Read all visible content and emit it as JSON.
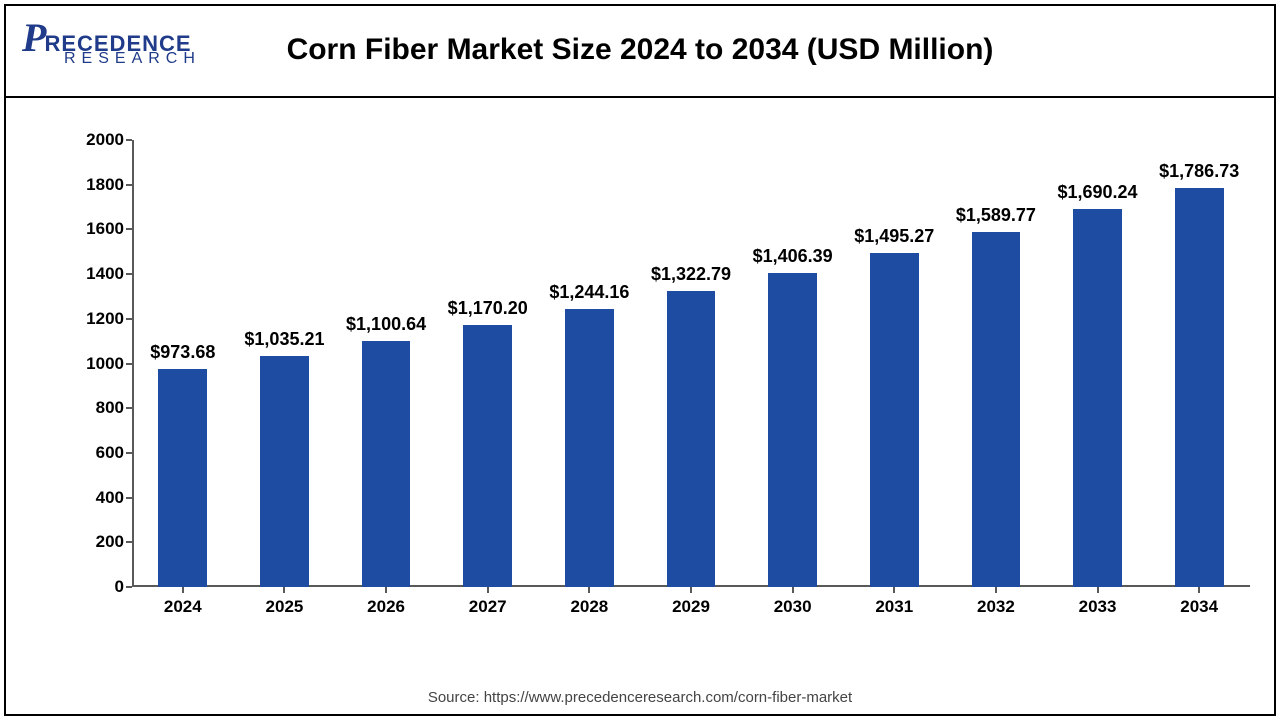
{
  "logo": {
    "brand_p": "P",
    "brand_rest": "RECEDENCE",
    "brand_sub": "RESEARCH",
    "color": "#1f3b8a"
  },
  "title": "Corn Fiber Market Size 2024 to 2034 (USD Million)",
  "title_fontsize": 30,
  "chart": {
    "type": "bar",
    "categories": [
      "2024",
      "2025",
      "2026",
      "2027",
      "2028",
      "2029",
      "2030",
      "2031",
      "2032",
      "2033",
      "2034"
    ],
    "values": [
      973.68,
      1035.21,
      1100.64,
      1170.2,
      1244.16,
      1322.79,
      1406.39,
      1495.27,
      1589.77,
      1690.24,
      1786.73
    ],
    "value_labels": [
      "$973.68",
      "$1,035.21",
      "$1,100.64",
      "$1,170.20",
      "$1,244.16",
      "$1,322.79",
      "$1,406.39",
      "$1,495.27",
      "$1,589.77",
      "$1,690.24",
      "$1,786.73"
    ],
    "bar_color": "#1f4ca3",
    "ylim": [
      0,
      2000
    ],
    "ytick_step": 200,
    "yticks": [
      0,
      200,
      400,
      600,
      800,
      1000,
      1200,
      1400,
      1600,
      1800,
      2000
    ],
    "axis_color": "#595959",
    "background_color": "#ffffff",
    "bar_width_ratio": 0.48,
    "tick_fontsize": 17,
    "label_fontsize": 18
  },
  "source": "Source: https://www.precedenceresearch.com/corn-fiber-market"
}
